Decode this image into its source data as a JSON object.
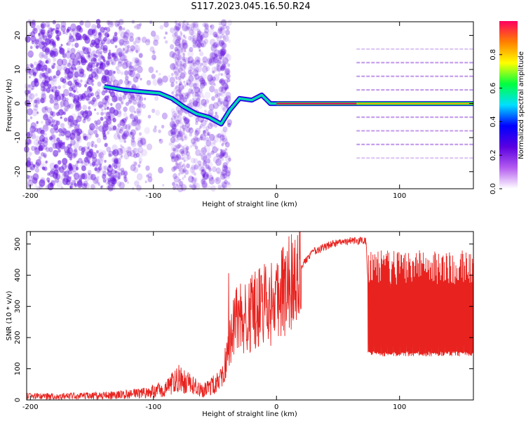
{
  "title": "S117.2023.045.16.50.R24",
  "colors": {
    "snr_line": "#e8231f",
    "spectral_points": "#6a1be0",
    "ridge_hot": "#e0175a",
    "ridge_mid": "#00d9b0"
  },
  "chart_data": [
    {
      "type": "heatmap",
      "title": "S117.2023.045.16.50.R24",
      "xlabel": "Height of straight line (km)",
      "ylabel": "Frequency (Hz)",
      "xlim": [
        -203,
        160
      ],
      "ylim": [
        -25,
        24
      ],
      "x_ticks": [
        "-200",
        "-100",
        "0",
        "100"
      ],
      "y_ticks": [
        "20",
        "10",
        "0",
        "-10",
        "-20"
      ],
      "colorbar": {
        "label": "Normalized spectral amplitude",
        "range": [
          0,
          1
        ],
        "ticks": [
          "0.0",
          "0.2",
          "0.4",
          "0.6",
          "0.8"
        ],
        "colors": [
          "#ffffff",
          "#b45cf0",
          "#5a00e0",
          "#0000ff",
          "#00e0ff",
          "#00ff40",
          "#ffff00",
          "#ff8000",
          "#ff0060"
        ]
      },
      "ridge": [
        {
          "x": -140,
          "y": 5
        },
        {
          "x": -125,
          "y": 4
        },
        {
          "x": -110,
          "y": 3.5
        },
        {
          "x": -95,
          "y": 3
        },
        {
          "x": -85,
          "y": 1.5
        },
        {
          "x": -75,
          "y": -1
        },
        {
          "x": -65,
          "y": -3
        },
        {
          "x": -55,
          "y": -4
        },
        {
          "x": -45,
          "y": -6
        },
        {
          "x": -38,
          "y": -2
        },
        {
          "x": -30,
          "y": 1.5
        },
        {
          "x": -20,
          "y": 1
        },
        {
          "x": -12,
          "y": 2.5
        },
        {
          "x": -5,
          "y": 0
        },
        {
          "x": 0,
          "y": 0
        },
        {
          "x": 160,
          "y": 0
        }
      ],
      "harmonic_lines_hz": [
        16,
        12,
        8,
        4,
        0,
        -4,
        -8,
        -12,
        -16
      ]
    },
    {
      "type": "line",
      "xlabel": "Height of straight line (km)",
      "ylabel": "SNR (10 * v/v)",
      "xlim": [
        -203,
        160
      ],
      "ylim": [
        0,
        540
      ],
      "x_ticks": [
        "-200",
        "-100",
        "0",
        "100"
      ],
      "y_ticks": [
        "0",
        "100",
        "200",
        "300",
        "400",
        "500"
      ],
      "envelope": [
        {
          "x": -203,
          "y": 12
        },
        {
          "x": -160,
          "y": 12
        },
        {
          "x": -130,
          "y": 15
        },
        {
          "x": -110,
          "y": 22
        },
        {
          "x": -90,
          "y": 35
        },
        {
          "x": -80,
          "y": 70
        },
        {
          "x": -75,
          "y": 60
        },
        {
          "x": -60,
          "y": 30
        },
        {
          "x": -45,
          "y": 60
        },
        {
          "x": -35,
          "y": 230
        },
        {
          "x": -30,
          "y": 280
        },
        {
          "x": -25,
          "y": 250
        },
        {
          "x": -15,
          "y": 310
        },
        {
          "x": -5,
          "y": 300
        },
        {
          "x": 0,
          "y": 330
        },
        {
          "x": 10,
          "y": 380
        },
        {
          "x": 20,
          "y": 430
        },
        {
          "x": 30,
          "y": 475
        },
        {
          "x": 45,
          "y": 500
        },
        {
          "x": 60,
          "y": 510
        },
        {
          "x": 73,
          "y": 510
        },
        {
          "x": 75,
          "y": 280
        },
        {
          "x": 160,
          "y": 280
        }
      ],
      "band_after_x": 73,
      "band_range": [
        140,
        480
      ]
    }
  ]
}
